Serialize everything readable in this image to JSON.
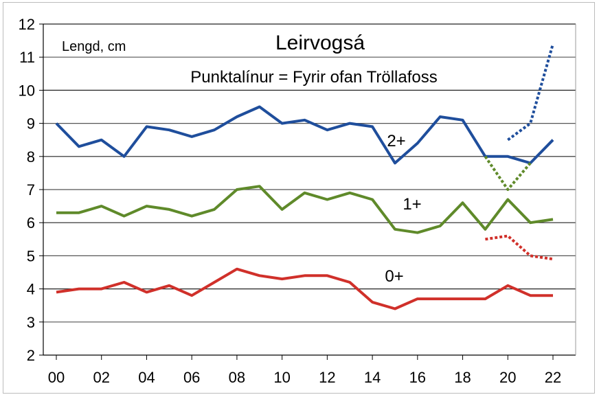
{
  "chart_data": {
    "type": "line",
    "title": "Leirvogsá",
    "subtitle": "Punktalínur = Fyrir ofan Tröllafoss",
    "ylabel": "Lengd, cm",
    "xlabel": "",
    "ylim": [
      2,
      12
    ],
    "xlim": [
      0,
      22
    ],
    "yticks": [
      "2",
      "3",
      "4",
      "5",
      "6",
      "7",
      "8",
      "9",
      "10",
      "11",
      "12"
    ],
    "xticks": [
      "00",
      "02",
      "04",
      "06",
      "08",
      "10",
      "12",
      "14",
      "16",
      "18",
      "20",
      "22"
    ],
    "grid": true,
    "x": [
      0,
      1,
      2,
      3,
      4,
      5,
      6,
      7,
      8,
      9,
      10,
      11,
      12,
      13,
      14,
      15,
      16,
      17,
      18,
      19,
      20,
      21,
      22
    ],
    "series": [
      {
        "name": "2+",
        "label": "2+",
        "color": "#1f4e9c",
        "style": "solid",
        "values": [
          9.0,
          8.3,
          8.5,
          8.0,
          8.9,
          8.8,
          8.6,
          8.8,
          9.2,
          9.5,
          9.0,
          9.1,
          8.8,
          9.0,
          8.9,
          7.8,
          8.4,
          9.2,
          9.1,
          8.0,
          8.0,
          7.8,
          8.5
        ]
      },
      {
        "name": "1+",
        "label": "1+",
        "color": "#5f8a2a",
        "style": "solid",
        "values": [
          6.3,
          6.3,
          6.5,
          6.2,
          6.5,
          6.4,
          6.2,
          6.4,
          7.0,
          7.1,
          6.4,
          6.9,
          6.7,
          6.9,
          6.7,
          5.8,
          5.7,
          5.9,
          6.6,
          5.8,
          6.7,
          6.0,
          6.1
        ]
      },
      {
        "name": "0+",
        "label": "0+",
        "color": "#d0302a",
        "style": "solid",
        "values": [
          3.9,
          4.0,
          4.0,
          4.2,
          3.9,
          4.1,
          3.8,
          4.2,
          4.6,
          4.4,
          4.3,
          4.4,
          4.4,
          4.2,
          3.6,
          3.4,
          3.7,
          3.7,
          3.7,
          3.7,
          4.1,
          3.8,
          3.8
        ]
      },
      {
        "name": "2+ ofan Tröllafoss",
        "color": "#1f4e9c",
        "style": "dotted",
        "x": [
          20,
          21,
          22
        ],
        "values": [
          8.5,
          9.0,
          11.4
        ]
      },
      {
        "name": "1+ ofan Tröllafoss",
        "color": "#5f8a2a",
        "style": "dotted",
        "x": [
          19,
          20,
          21
        ],
        "values": [
          8.0,
          7.0,
          7.8
        ]
      },
      {
        "name": "0+ ofan Tröllafoss",
        "color": "#d0302a",
        "style": "dotted",
        "x": [
          19,
          20,
          21,
          22
        ],
        "values": [
          5.5,
          5.6,
          5.0,
          4.9
        ]
      }
    ]
  }
}
